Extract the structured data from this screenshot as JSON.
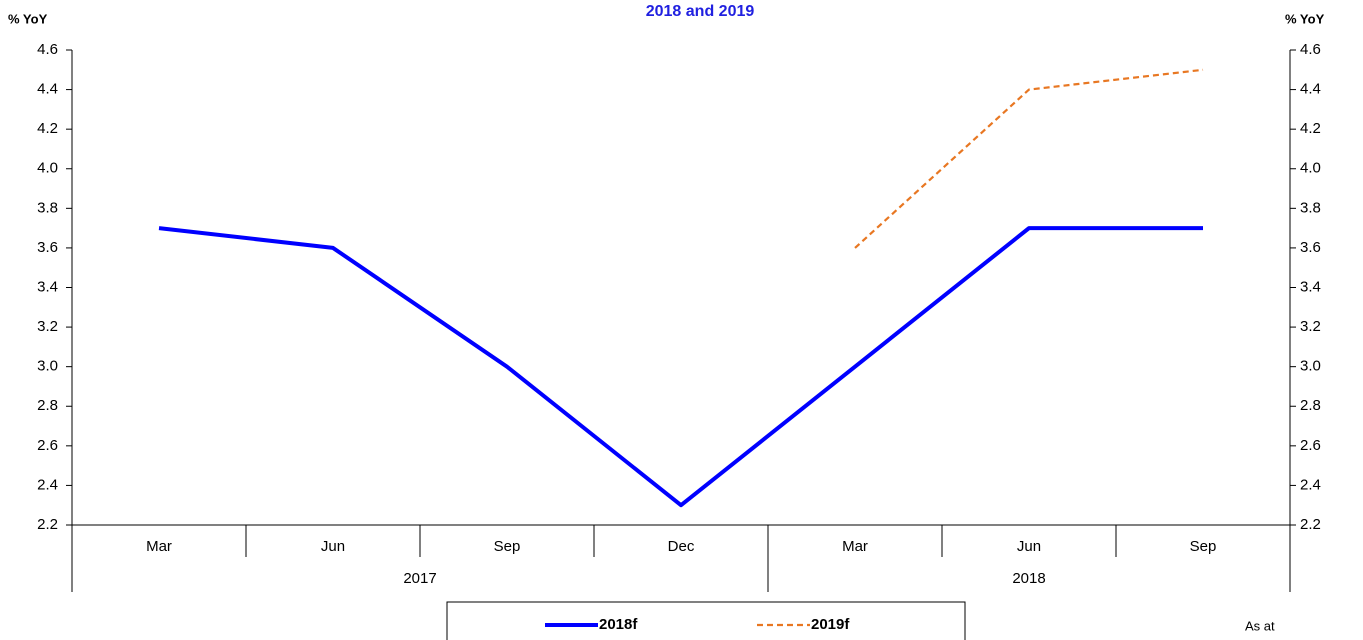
{
  "chart_data": {
    "type": "line",
    "title": "2018 and 2019",
    "y_label": "% YoY",
    "y2_label": "% YoY",
    "groups": [
      {
        "label": "2017",
        "categories": [
          "Mar",
          "Jun",
          "Sep",
          "Dec"
        ]
      },
      {
        "label": "2018",
        "categories": [
          "Mar",
          "Jun",
          "Sep"
        ]
      }
    ],
    "series": [
      {
        "name": "2018f",
        "color": "#0000ff",
        "values": [
          3.7,
          3.6,
          3.0,
          2.3,
          3.0,
          3.7,
          3.7
        ]
      },
      {
        "name": "2019f",
        "color": "#e87722",
        "values": [
          null,
          null,
          null,
          null,
          3.6,
          4.4,
          4.5
        ]
      }
    ],
    "ylim": [
      2.2,
      4.6
    ],
    "yticks": [
      2.2,
      2.4,
      2.6,
      2.8,
      {
        "value": 3,
        "label": "3.0"
      },
      3.2,
      3.4,
      3.6,
      3.8,
      {
        "value": 4,
        "label": "4.0"
      },
      4.2,
      4.4,
      4.6
    ],
    "y2lim": [
      2.2,
      4.6
    ],
    "y2ticks": [
      2.2,
      2.4,
      2.6,
      2.8,
      {
        "value": 3,
        "label": "3.0"
      },
      3.2,
      3.4,
      3.6,
      3.8,
      {
        "value": 4,
        "label": "4.0"
      },
      4.2,
      4.4,
      4.6
    ],
    "legend": "bottom",
    "note": "As at"
  }
}
